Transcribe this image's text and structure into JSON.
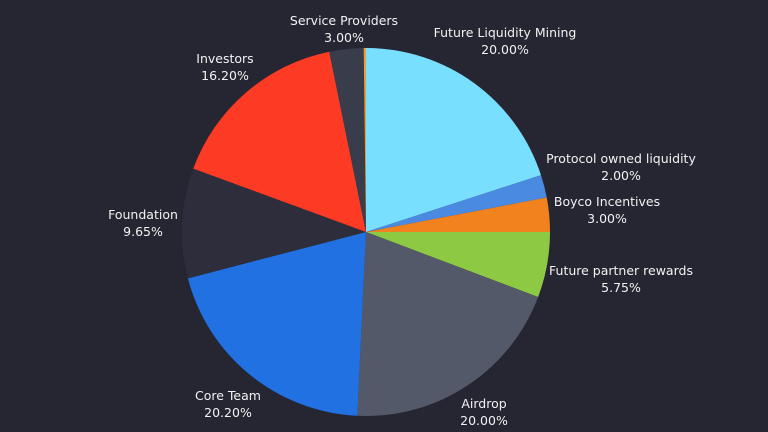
{
  "background": "#262633",
  "chart_data": {
    "type": "pie",
    "start": "12 o'clock",
    "direction": "clockwise",
    "slices": [
      {
        "label": "Future Liquidity Mining",
        "percent": "20.00%",
        "value": 20.0,
        "color": "#79dfff"
      },
      {
        "label": "Protocol owned liquidity",
        "percent": "2.00%",
        "value": 2.0,
        "color": "#4a8ae0"
      },
      {
        "label": "Boyco Incentives",
        "percent": "3.00%",
        "value": 3.0,
        "color": "#f2821e"
      },
      {
        "label": "Future partner rewards",
        "percent": "5.75%",
        "value": 5.75,
        "color": "#8ec943"
      },
      {
        "label": "Airdrop",
        "percent": "20.00%",
        "value": 20.0,
        "color": "#545969"
      },
      {
        "label": "Core Team",
        "percent": "20.20%",
        "value": 20.2,
        "color": "#2271e3"
      },
      {
        "label": "Foundation",
        "percent": "9.65%",
        "value": 9.65,
        "color": "#2d2d3c"
      },
      {
        "label": "Investors",
        "percent": "16.20%",
        "value": 16.2,
        "color": "#fd3a23"
      },
      {
        "label": "Service Providers",
        "percent": "3.00%",
        "value": 3.0,
        "color": "#393c4b"
      },
      {
        "label": "",
        "percent": "",
        "value": 0.2,
        "color": "#e8a13a"
      }
    ]
  }
}
